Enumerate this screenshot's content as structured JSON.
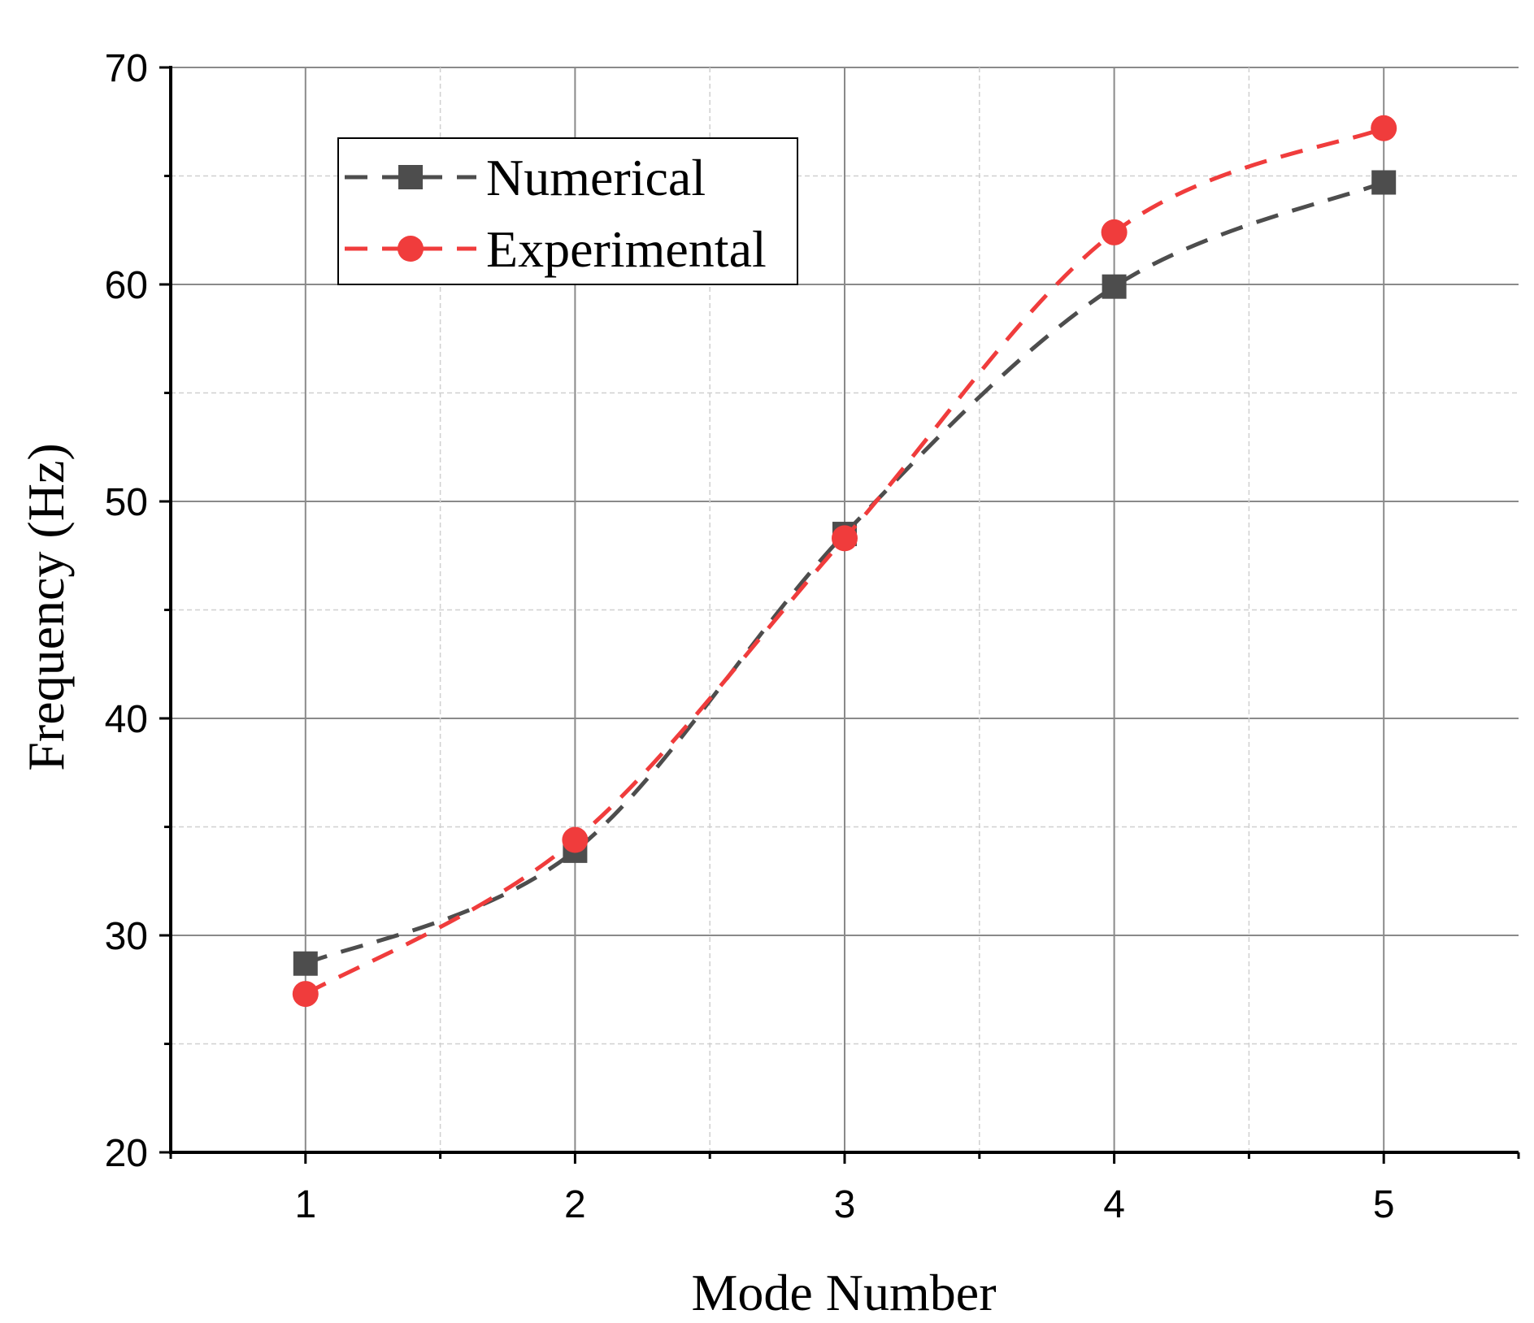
{
  "chart_data": {
    "type": "line",
    "title": "",
    "xlabel": "Mode Number",
    "ylabel": "Frequency (Hz)",
    "x": [
      1,
      2,
      3,
      4,
      5
    ],
    "xlim": [
      0.5,
      5.5
    ],
    "ylim": [
      20,
      70
    ],
    "xticks": [
      "1",
      "2",
      "3",
      "4",
      "5"
    ],
    "yticks": [
      "20",
      "30",
      "40",
      "50",
      "60",
      "70"
    ],
    "grid": true,
    "legend_position": "top-left",
    "series": [
      {
        "name": "Numerical",
        "marker": "square",
        "color": "#4d4d4d",
        "values": [
          28.7,
          33.9,
          48.5,
          59.9,
          64.7
        ]
      },
      {
        "name": "Experimental",
        "marker": "circle",
        "color": "#f03c3c",
        "values": [
          27.3,
          34.4,
          48.3,
          62.4,
          67.2
        ]
      }
    ]
  }
}
